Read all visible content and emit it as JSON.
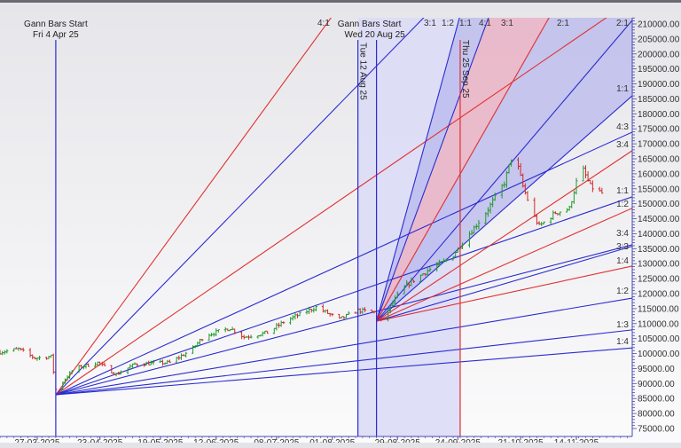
{
  "chart_data": {
    "type": "ohlc",
    "title": "",
    "xlabel": "",
    "ylabel": "",
    "ylim": [
      75000,
      210000
    ],
    "xlim": [
      "2025-03-11",
      "2025-12-08"
    ],
    "grid": false,
    "y_ticks": [
      "210000.00",
      "205000.00",
      "200000.00",
      "195000.00",
      "190000.00",
      "185000.00",
      "180000.00",
      "175000.00",
      "170000.00",
      "165000.00",
      "160000.00",
      "155000.00",
      "150000.00",
      "145000.00",
      "140000.00",
      "135000.00",
      "130000.00",
      "125000.00",
      "120000.00",
      "115000.00",
      "110000.00",
      "105000.00",
      "100000.00",
      "95000.00",
      "90000.00",
      "85000.00",
      "80000.00",
      "75000.00"
    ],
    "x_ticks": [
      {
        "date": "2025-03-27",
        "label": "27-03-2025"
      },
      {
        "date": "2025-04-23",
        "label": "23-04-2025"
      },
      {
        "date": "2025-05-19",
        "label": "19-05-2025"
      },
      {
        "date": "2025-06-12",
        "label": "12-06-2025"
      },
      {
        "date": "2025-07-08",
        "label": "08-07-2025"
      },
      {
        "date": "2025-08-01",
        "label": "01-08-2025"
      },
      {
        "date": "2025-08-29",
        "label": "29-08-2025"
      },
      {
        "date": "2025-09-24",
        "label": "24-09-2025"
      },
      {
        "date": "2025-10-21",
        "label": "21-10-2025"
      },
      {
        "date": "2025-11-14",
        "label": "14-11-2025"
      }
    ],
    "price_path": [
      {
        "date": "2025-03-11",
        "close": 100500
      },
      {
        "date": "2025-03-19",
        "close": 101500
      },
      {
        "date": "2025-03-26",
        "close": 98500
      },
      {
        "date": "2025-04-02",
        "close": 99000
      },
      {
        "date": "2025-04-03",
        "close": 94000
      },
      {
        "date": "2025-04-04",
        "close": 88000
      },
      {
        "date": "2025-04-12",
        "close": 95000
      },
      {
        "date": "2025-04-22",
        "close": 97000
      },
      {
        "date": "2025-04-30",
        "close": 93000
      },
      {
        "date": "2025-05-08",
        "close": 96500
      },
      {
        "date": "2025-05-23",
        "close": 97000
      },
      {
        "date": "2025-06-01",
        "close": 101000
      },
      {
        "date": "2025-06-07",
        "close": 106000
      },
      {
        "date": "2025-06-18",
        "close": 108500
      },
      {
        "date": "2025-06-24",
        "close": 105500
      },
      {
        "date": "2025-07-04",
        "close": 107000
      },
      {
        "date": "2025-07-12",
        "close": 111000
      },
      {
        "date": "2025-07-25",
        "close": 115500
      },
      {
        "date": "2025-08-04",
        "close": 111400
      },
      {
        "date": "2025-08-12",
        "close": 114400
      },
      {
        "date": "2025-08-19",
        "close": 113800
      },
      {
        "date": "2025-08-22",
        "close": 110800
      },
      {
        "date": "2025-08-31",
        "close": 121800
      },
      {
        "date": "2025-09-11",
        "close": 127700
      },
      {
        "date": "2025-09-21",
        "close": 132000
      },
      {
        "date": "2025-09-27",
        "close": 138000
      },
      {
        "date": "2025-10-06",
        "close": 147000
      },
      {
        "date": "2025-10-14",
        "close": 157000
      },
      {
        "date": "2025-10-18",
        "close": 168000
      },
      {
        "date": "2025-10-22",
        "close": 155800
      },
      {
        "date": "2025-10-26",
        "close": 147000
      },
      {
        "date": "2025-10-29",
        "close": 142500
      },
      {
        "date": "2025-11-05",
        "close": 147000
      },
      {
        "date": "2025-11-11",
        "close": 148400
      },
      {
        "date": "2025-11-16",
        "close": 163000
      },
      {
        "date": "2025-11-20",
        "close": 155800
      },
      {
        "date": "2025-11-25",
        "close": 153500
      }
    ],
    "fans": [
      {
        "name": "fan-1",
        "origin": {
          "date": "2025-04-04",
          "price": 86250
        },
        "lines": [
          {
            "color": "#e03030",
            "end_date": "2025-12-08",
            "end_price": 349700
          },
          {
            "color": "#2b2bd0",
            "end_date": "2025-12-08",
            "end_price": 283400
          },
          {
            "color": "#e03030",
            "end_date": "2025-12-08",
            "end_price": 218000
          },
          {
            "color": "#2b2bd0",
            "end_date": "2025-12-08",
            "end_price": 173900
          },
          {
            "color": "#2b2bd0",
            "end_date": "2025-12-08",
            "end_price": 152300
          },
          {
            "color": "#2b2bd0",
            "end_date": "2025-12-08",
            "end_price": 136300
          },
          {
            "color": "#2b2bd0",
            "end_date": "2025-12-08",
            "end_price": 118500
          },
          {
            "color": "#2b2bd0",
            "end_date": "2025-12-08",
            "end_price": 107900
          },
          {
            "color": "#2b2bd0",
            "end_date": "2025-12-08",
            "end_price": 101900
          }
        ]
      },
      {
        "name": "fan-2",
        "origin": {
          "date": "2025-08-20",
          "price": 110800
        },
        "lines": [
          {
            "color": "#2b2bd0",
            "end_date": "2025-12-08",
            "end_price": 422800
          },
          {
            "color": "#2b2bd0",
            "end_date": "2025-12-08",
            "end_price": 342000
          },
          {
            "color": "#e03030",
            "end_date": "2025-12-08",
            "end_price": 260900
          },
          {
            "color": "#2b2bd0",
            "end_date": "2025-12-08",
            "end_price": 211200
          },
          {
            "color": "#2b2bd0",
            "end_date": "2025-12-08",
            "end_price": 186000
          },
          {
            "color": "#e03030",
            "end_date": "2025-12-08",
            "end_price": 167700
          },
          {
            "color": "#e03030",
            "end_date": "2025-12-08",
            "end_price": 148500
          },
          {
            "color": "#2b2bd0",
            "end_date": "2025-12-08",
            "end_price": 135800
          },
          {
            "color": "#e03030",
            "end_date": "2025-12-08",
            "end_price": 129200
          }
        ]
      }
    ],
    "top_ratio_labels": [
      "4:1",
      "3:1",
      "1:2",
      "1:1",
      "4:1",
      "3:1",
      "2:1",
      "2:1"
    ],
    "right_ratio_labels": [
      "1:1",
      "4:3",
      "3:4",
      "1:1",
      "1:2",
      "3:4",
      "3:3",
      "1:4",
      "1:2",
      "1:3",
      "1:4"
    ],
    "verticals": [
      {
        "date": "2025-04-04",
        "color": "#2b2bd0",
        "label1": "Gann Bars Start",
        "label2": "Fri 4 Apr 25"
      },
      {
        "date": "2025-08-12",
        "color": "#2b2bd0",
        "label1": "Tue 12 Aug 25",
        "label2": ""
      },
      {
        "date": "2025-08-20",
        "color": "#2b2bd0",
        "label1": "Gann Bars Start",
        "label2": "Wed 20 Aug 25"
      },
      {
        "date": "2025-09-25",
        "color": "#e03030",
        "label1": "Thu 25 Sep 25",
        "label2": ""
      }
    ],
    "colors": {
      "up": "#1f9a2a",
      "down": "#d02a2a",
      "blue": "#2b2bd0",
      "red": "#e03030",
      "fan_shade": "#b8b8ee",
      "band_shade": "#f0b8c4",
      "axis": "#4a4ab0"
    }
  }
}
